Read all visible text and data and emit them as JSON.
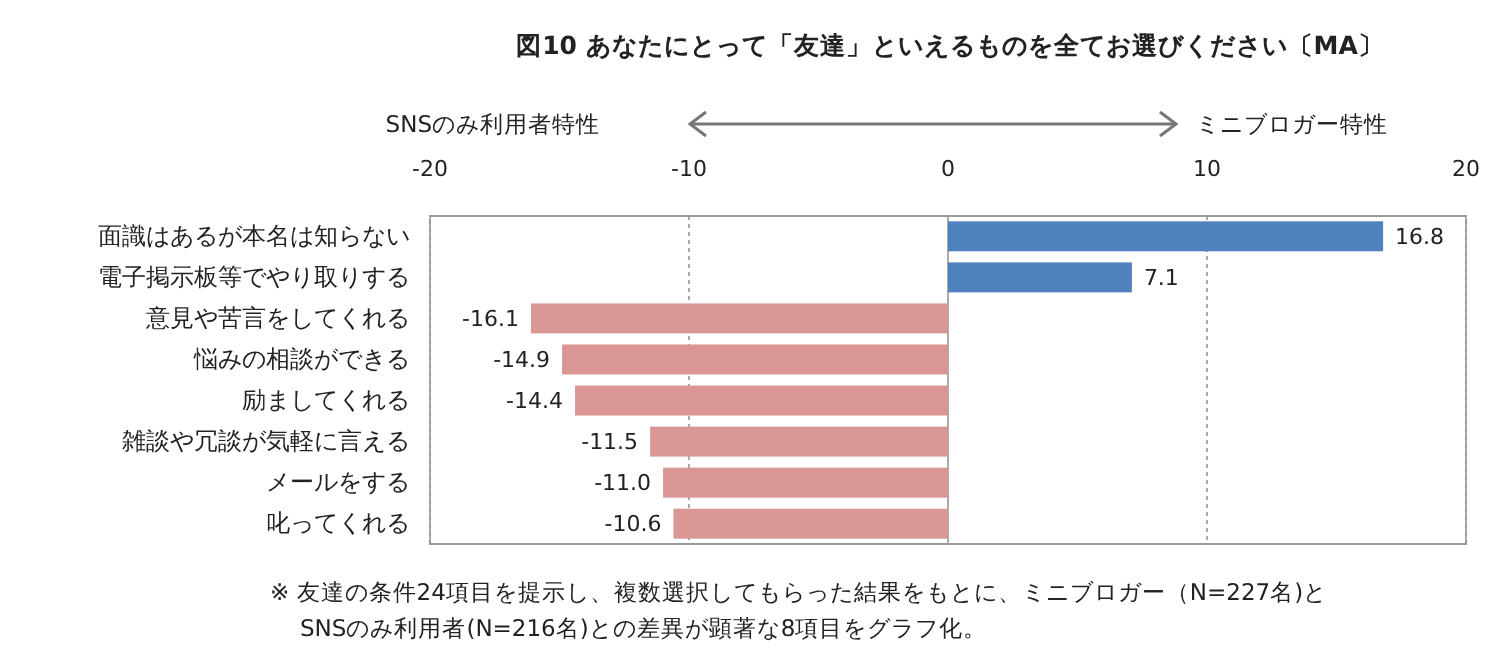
{
  "chart_data": {
    "type": "bar",
    "orientation": "horizontal",
    "title": "図10 あなたにとって「友達」といえるものを全てお選びください〔MA〕",
    "categories": [
      "面識はあるが本名は知らない",
      "電子掲示板等でやり取りする",
      "意見や苦言をしてくれる",
      "悩みの相談ができる",
      "励ましてくれる",
      "雑談や冗談が気軽に言える",
      "メールをする",
      "叱ってくれる"
    ],
    "values": [
      16.8,
      7.1,
      -16.1,
      -14.9,
      -14.4,
      -11.5,
      -11.0,
      -10.6
    ],
    "value_labels": [
      "16.8",
      "7.1",
      "-16.1",
      "-14.9",
      "-14.4",
      "-11.5",
      "-11.0",
      "-10.6"
    ],
    "colors": [
      "#4f81bd",
      "#4f81bd",
      "#d99694",
      "#d99694",
      "#d99694",
      "#d99694",
      "#d99694",
      "#d99694"
    ],
    "xlim": [
      -20,
      20
    ],
    "xticks": [
      -20,
      -10,
      0,
      10,
      20
    ],
    "grid": "x",
    "annotations": [
      "SNSのみ利用者特性",
      "ミニブロガー特性",
      "※ 友達の条件24項目を提示し、複数選択してもらった結果をもとに、ミニブロガー（N=227名)と\nSNSのみ利用者(N=216名)との差異が顕著な8項目をグラフ化。"
    ]
  }
}
